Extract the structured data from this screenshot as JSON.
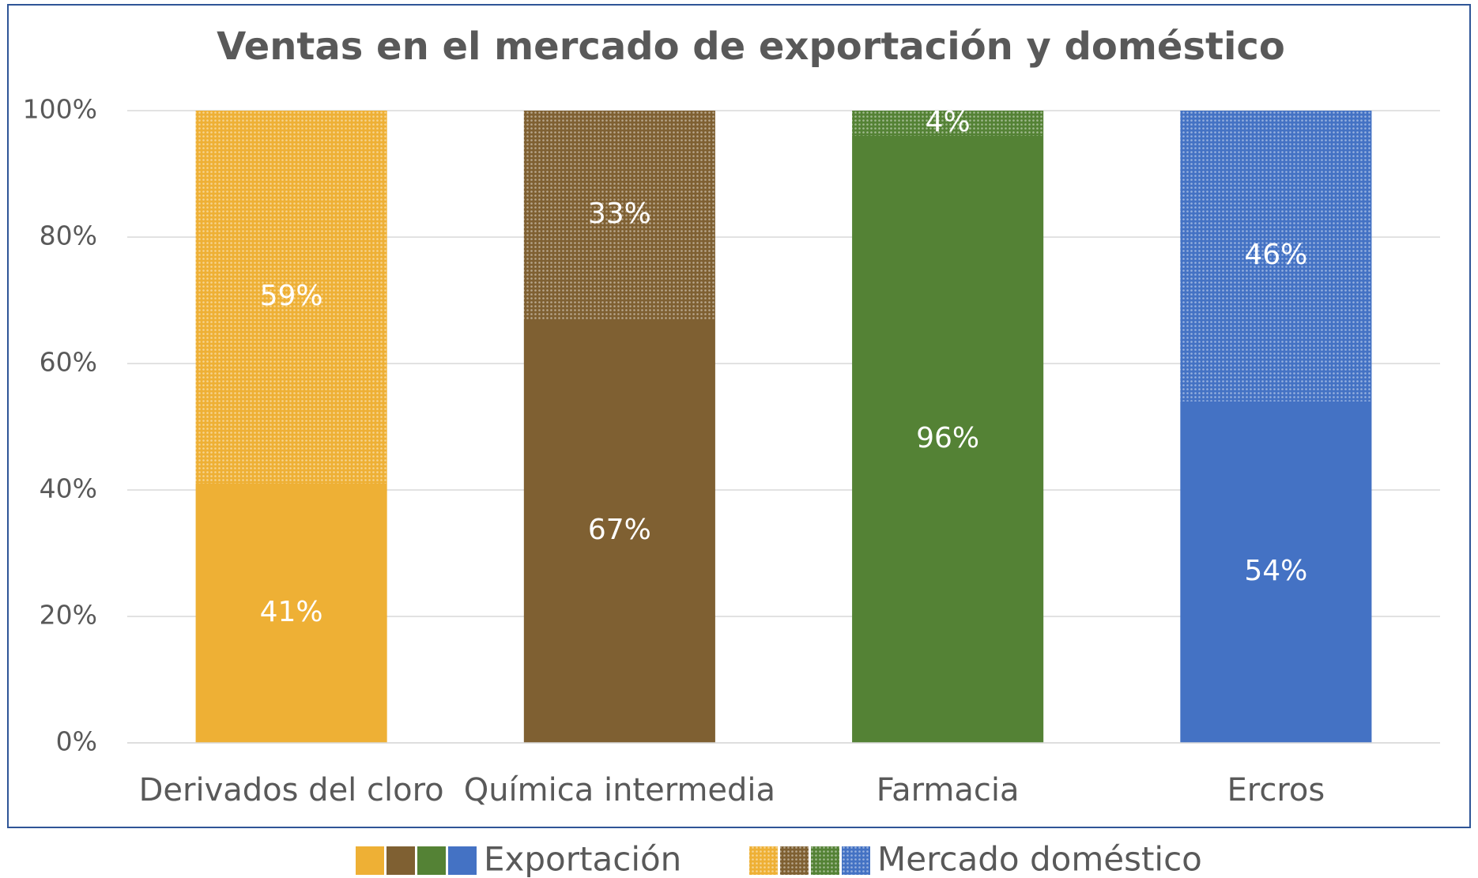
{
  "chart_data": {
    "type": "stacked_bar_100",
    "title": "Ventas en el mercado de exportación y doméstico",
    "categories": [
      "Derivados del cloro",
      "Química intermedia",
      "Farmacia",
      "Ercros"
    ],
    "colors": [
      "#eeb035",
      "#7f6032",
      "#548235",
      "#4472c4"
    ],
    "series": [
      {
        "name": "Exportación",
        "values": [
          41,
          67,
          96,
          54
        ],
        "value_labels": [
          "41%",
          "67%",
          "96%",
          "54%"
        ]
      },
      {
        "name": "Mercado doméstico",
        "values": [
          59,
          33,
          4,
          46
        ],
        "value_labels": [
          "59%",
          "33%",
          "4%",
          "46%"
        ],
        "pattern": "dots"
      }
    ],
    "ylim": [
      0,
      100
    ],
    "yticks": [
      {
        "value": 0,
        "label": "0%"
      },
      {
        "value": 20,
        "label": "20%"
      },
      {
        "value": 40,
        "label": "40%"
      },
      {
        "value": 60,
        "label": "60%"
      },
      {
        "value": 80,
        "label": "80%"
      },
      {
        "value": 100,
        "label": "100%"
      }
    ],
    "grid": true
  }
}
